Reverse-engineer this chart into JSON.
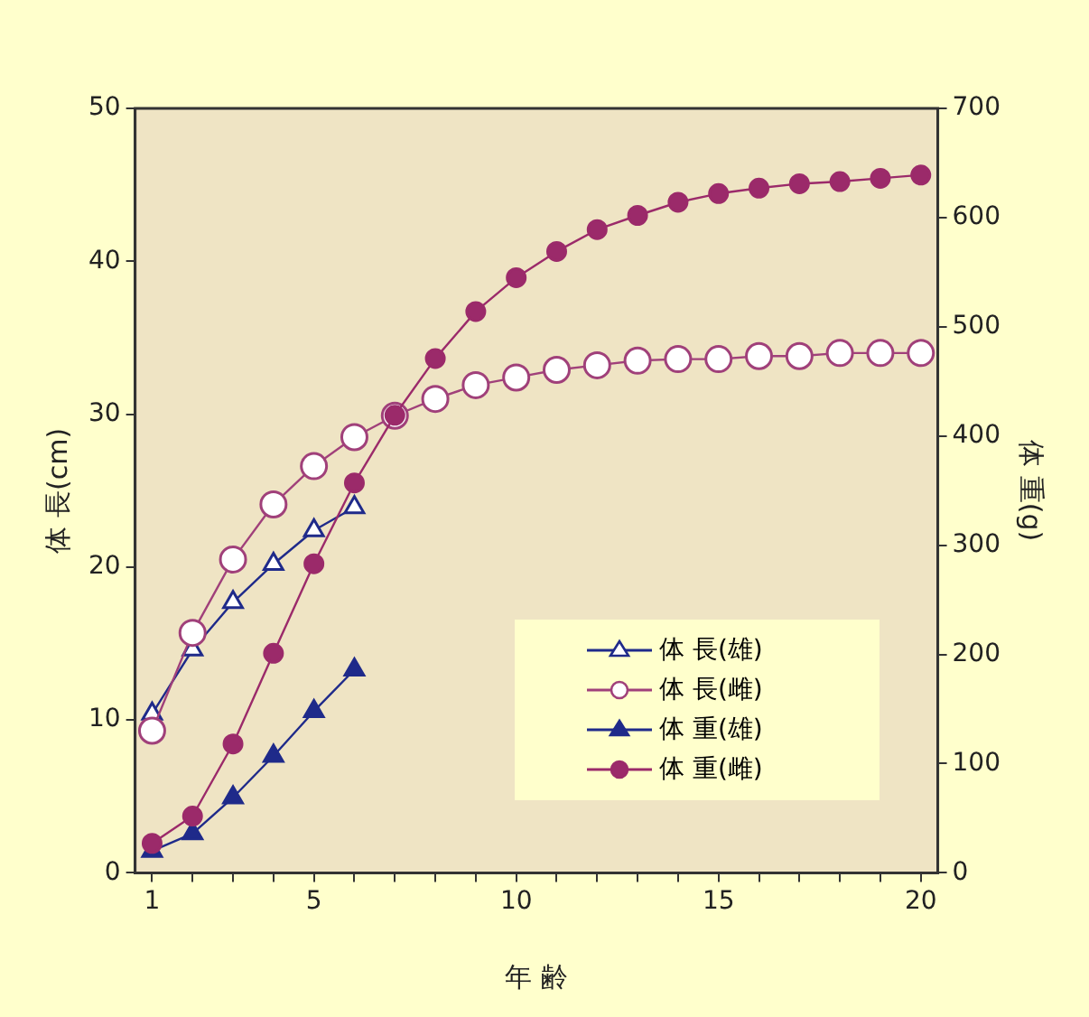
{
  "chart_data": {
    "type": "line",
    "xlabel": "年 齢",
    "ylabel": "体 長(cm)",
    "y2label": "体 重(g)",
    "xlim": [
      0.58,
      20.42
    ],
    "xticks": [
      1,
      {
        "value": 2,
        "label": null
      },
      {
        "value": 3,
        "label": null
      },
      {
        "value": 4,
        "label": null
      },
      5,
      {
        "value": 6,
        "label": null
      },
      {
        "value": 7,
        "label": null
      },
      {
        "value": 8,
        "label": null
      },
      {
        "value": 9,
        "label": null
      },
      10,
      {
        "value": 11,
        "label": null
      },
      {
        "value": 12,
        "label": null
      },
      {
        "value": 13,
        "label": null
      },
      {
        "value": 14,
        "label": null
      },
      15,
      {
        "value": 16,
        "label": null
      },
      {
        "value": 17,
        "label": null
      },
      {
        "value": 18,
        "label": null
      },
      {
        "value": 19,
        "label": null
      },
      20
    ],
    "ylim": [
      0,
      50
    ],
    "yticks": [
      0,
      10,
      20,
      30,
      40,
      50
    ],
    "y2lim": [
      0,
      700
    ],
    "y2ticks": [
      0,
      100,
      200,
      300,
      400,
      500,
      600,
      700
    ],
    "x": [
      1,
      2,
      3,
      4,
      5,
      6,
      7,
      8,
      9,
      10,
      11,
      12,
      13,
      14,
      15,
      16,
      17,
      18,
      19,
      20
    ],
    "legend": "bottom right",
    "line_style": "solid",
    "series": [
      {
        "name": "体 長(雄)",
        "color": "#1f2a8a",
        "marker": "triangle",
        "values": [
          10.4,
          14.6,
          17.7,
          20.2,
          22.4,
          23.9,
          null,
          null,
          null,
          null,
          null,
          null,
          null,
          null,
          null,
          null,
          null,
          null,
          null,
          null
        ]
      },
      {
        "name": "体 長(雌)",
        "color": "#a0407a",
        "marker": "circle",
        "values": [
          9.3,
          15.7,
          20.5,
          24.1,
          26.6,
          28.5,
          29.9,
          31.0,
          31.9,
          32.4,
          32.9,
          33.2,
          33.5,
          33.6,
          33.6,
          33.8,
          33.8,
          34.0,
          34.0,
          34.0
        ]
      },
      {
        "name": "体 重(雄)",
        "color": "#1f2a8a",
        "marker": "triangle",
        "axis": "y2",
        "values": [
          20,
          36,
          69,
          107,
          148,
          186,
          null,
          null,
          null,
          null,
          null,
          null,
          null,
          null,
          null,
          null,
          null,
          null,
          null,
          null
        ]
      },
      {
        "name": "体 重(雌)",
        "color": "#9b2a6a",
        "marker": "circle",
        "axis": "y2",
        "values": [
          27,
          52,
          118,
          201,
          283,
          357,
          419,
          471,
          514,
          545,
          569,
          589,
          602,
          614,
          622,
          627,
          631,
          633,
          636,
          639
        ]
      }
    ]
  }
}
